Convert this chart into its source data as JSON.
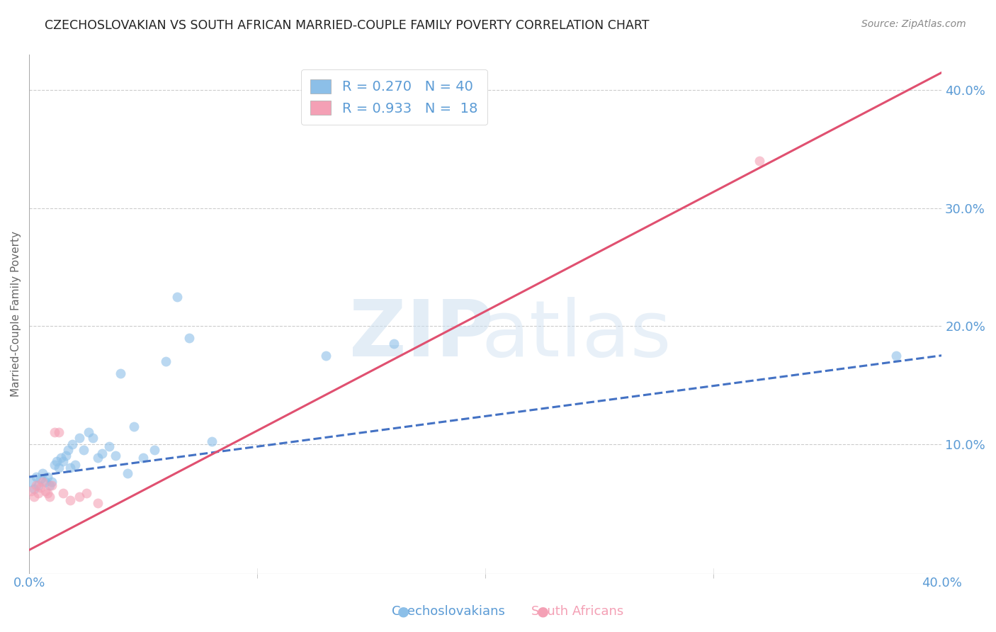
{
  "title": "CZECHOSLOVAKIAN VS SOUTH AFRICAN MARRIED-COUPLE FAMILY POVERTY CORRELATION CHART",
  "source": "Source: ZipAtlas.com",
  "ylabel": "Married-Couple Family Poverty",
  "xlim": [
    0.0,
    0.4
  ],
  "ylim": [
    -0.01,
    0.43
  ],
  "yticks_right": [
    0.1,
    0.2,
    0.3,
    0.4
  ],
  "background_color": "#ffffff",
  "axis_color": "#5b9bd5",
  "czech_scatter_x": [
    0.001,
    0.002,
    0.003,
    0.004,
    0.005,
    0.006,
    0.007,
    0.008,
    0.009,
    0.01,
    0.011,
    0.012,
    0.013,
    0.014,
    0.015,
    0.016,
    0.017,
    0.018,
    0.019,
    0.02,
    0.022,
    0.024,
    0.026,
    0.028,
    0.03,
    0.032,
    0.035,
    0.038,
    0.04,
    0.043,
    0.046,
    0.05,
    0.055,
    0.06,
    0.065,
    0.07,
    0.08,
    0.13,
    0.16,
    0.38
  ],
  "czech_scatter_y": [
    0.068,
    0.062,
    0.072,
    0.065,
    0.07,
    0.075,
    0.068,
    0.072,
    0.065,
    0.068,
    0.082,
    0.085,
    0.08,
    0.088,
    0.085,
    0.09,
    0.095,
    0.08,
    0.1,
    0.082,
    0.105,
    0.095,
    0.11,
    0.105,
    0.088,
    0.092,
    0.098,
    0.09,
    0.16,
    0.075,
    0.115,
    0.088,
    0.095,
    0.17,
    0.225,
    0.19,
    0.102,
    0.175,
    0.185,
    0.175
  ],
  "sa_scatter_x": [
    0.001,
    0.002,
    0.003,
    0.004,
    0.005,
    0.006,
    0.007,
    0.008,
    0.009,
    0.01,
    0.011,
    0.013,
    0.015,
    0.018,
    0.022,
    0.025,
    0.03,
    0.32
  ],
  "sa_scatter_y": [
    0.06,
    0.055,
    0.065,
    0.058,
    0.063,
    0.068,
    0.06,
    0.058,
    0.055,
    0.065,
    0.11,
    0.11,
    0.058,
    0.052,
    0.055,
    0.058,
    0.05,
    0.34
  ],
  "czech_color": "#8cbfe8",
  "sa_color": "#f4a0b5",
  "czech_line_color": "#4472c4",
  "sa_line_color": "#e05070",
  "scatter_alpha": 0.6,
  "scatter_size": 100,
  "czech_trend_x": [
    0.0,
    0.4
  ],
  "czech_trend_y": [
    0.072,
    0.175
  ],
  "sa_trend_x": [
    0.0,
    0.4
  ],
  "sa_trend_y": [
    0.01,
    0.415
  ]
}
